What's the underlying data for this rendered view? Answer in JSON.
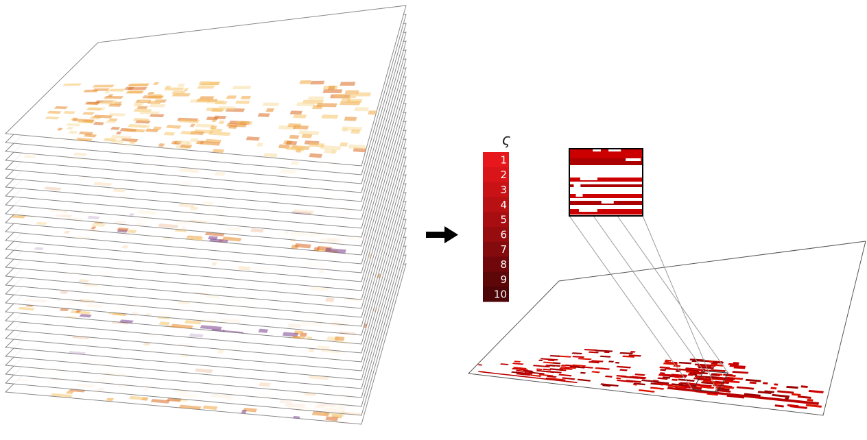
{
  "colorbar": {
    "symbol": "ς",
    "labels": [
      1,
      2,
      3,
      4,
      5,
      6,
      7,
      8,
      9,
      10
    ],
    "colors": [
      "#e8171c",
      "#d91519",
      "#c91216",
      "#b81013",
      "#a80e11",
      "#960c0f",
      "#830a0d",
      "#70080b",
      "#5e0709",
      "#4d0507"
    ]
  }
}
